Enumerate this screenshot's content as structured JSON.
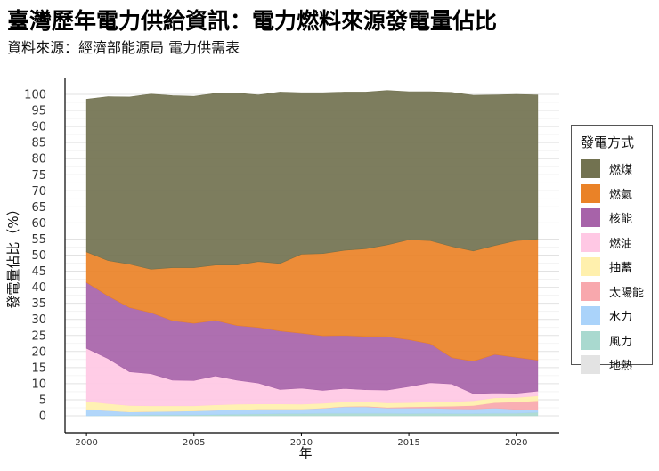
{
  "title": "臺灣歷年電力供給資訊：電力燃料來源發電量佔比",
  "subtitle": "資料來源：經濟部能源局 電力供需表",
  "chart_data": {
    "type": "area",
    "stacked": true,
    "title": "臺灣歷年電力供給資訊：電力燃料來源發電量佔比",
    "xlabel": "年",
    "ylabel": "發電量佔比（%）",
    "xlim": [
      1999,
      2022
    ],
    "ylim": [
      0,
      100
    ],
    "x_ticks": [
      2000,
      2005,
      2010,
      2015,
      2020
    ],
    "y_ticks": [
      0,
      5,
      10,
      15,
      20,
      25,
      30,
      35,
      40,
      45,
      50,
      55,
      60,
      65,
      70,
      75,
      80,
      85,
      90,
      95,
      100
    ],
    "grid": true,
    "legend_title": "發電方式",
    "legend_position": "right",
    "x": [
      2000,
      2001,
      2002,
      2003,
      2004,
      2005,
      2006,
      2007,
      2008,
      2009,
      2010,
      2011,
      2012,
      2013,
      2014,
      2015,
      2016,
      2017,
      2018,
      2019,
      2020,
      2021
    ],
    "series": [
      {
        "name": "燃煤",
        "color": "#727250",
        "values": [
          47.5,
          51.0,
          52.0,
          54.5,
          53.5,
          53.3,
          53.4,
          53.5,
          51.8,
          53.3,
          50.2,
          50.0,
          49.2,
          48.7,
          48.0,
          46.0,
          46.3,
          47.9,
          48.4,
          46.8,
          45.5,
          44.8
        ]
      },
      {
        "name": "燃氣",
        "color": "#ea8227",
        "values": [
          9.5,
          11.0,
          13.5,
          13.5,
          16.5,
          17.3,
          17.2,
          18.8,
          20.5,
          21.0,
          24.6,
          25.6,
          26.5,
          27.3,
          28.6,
          31.1,
          32.1,
          34.6,
          34.3,
          33.9,
          36.3,
          37.7
        ]
      },
      {
        "name": "核能",
        "color": "#a763a9",
        "values": [
          20.5,
          19.5,
          20.0,
          19.0,
          18.5,
          17.8,
          17.3,
          17.0,
          17.3,
          18.2,
          17.1,
          17.0,
          16.5,
          16.6,
          16.6,
          14.6,
          12.1,
          8.2,
          10.1,
          12.0,
          11.2,
          9.6
        ]
      },
      {
        "name": "燃油",
        "color": "#ffc8e4",
        "values": [
          16.5,
          14.0,
          10.5,
          10.0,
          8.0,
          7.9,
          9.0,
          7.5,
          6.5,
          4.5,
          5.0,
          4.0,
          4.2,
          3.7,
          4.0,
          5.0,
          6.0,
          5.5,
          2.2,
          1.5,
          1.3,
          1.5
        ]
      },
      {
        "name": "抽蓄",
        "color": "#fff0ad",
        "values": [
          2.5,
          2.2,
          2.0,
          1.8,
          1.7,
          1.6,
          1.7,
          1.7,
          1.6,
          1.6,
          1.5,
          1.5,
          1.4,
          1.4,
          1.4,
          1.3,
          1.4,
          1.4,
          1.5,
          1.5,
          1.4,
          1.5
        ]
      },
      {
        "name": "太陽能",
        "color": "#f8a8ad",
        "values": [
          0.0,
          0.0,
          0.0,
          0.0,
          0.0,
          0.0,
          0.0,
          0.0,
          0.0,
          0.0,
          0.0,
          0.1,
          0.1,
          0.2,
          0.2,
          0.4,
          0.5,
          0.8,
          1.1,
          1.7,
          2.3,
          3.0
        ]
      },
      {
        "name": "水力",
        "color": "#aad3fa",
        "values": [
          2.0,
          1.5,
          1.0,
          1.0,
          1.1,
          1.2,
          1.3,
          1.4,
          1.5,
          1.4,
          1.4,
          1.5,
          2.0,
          2.0,
          1.6,
          1.7,
          1.6,
          1.5,
          1.4,
          1.6,
          1.2,
          0.6
        ]
      },
      {
        "name": "風力",
        "color": "#a9d9cf",
        "values": [
          0.0,
          0.1,
          0.2,
          0.3,
          0.3,
          0.3,
          0.4,
          0.5,
          0.6,
          0.7,
          0.7,
          0.8,
          0.8,
          0.8,
          0.8,
          0.7,
          0.8,
          0.7,
          0.7,
          0.8,
          0.8,
          1.1
        ]
      },
      {
        "name": "地熱",
        "color": "#e3e3e3",
        "values": [
          0.0,
          0.0,
          0.0,
          0.0,
          0.0,
          0.0,
          0.0,
          0.0,
          0.0,
          0.0,
          0.0,
          0.0,
          0.0,
          0.0,
          0.0,
          0.0,
          0.0,
          0.0,
          0.0,
          0.0,
          0.0,
          0.0
        ]
      }
    ]
  }
}
